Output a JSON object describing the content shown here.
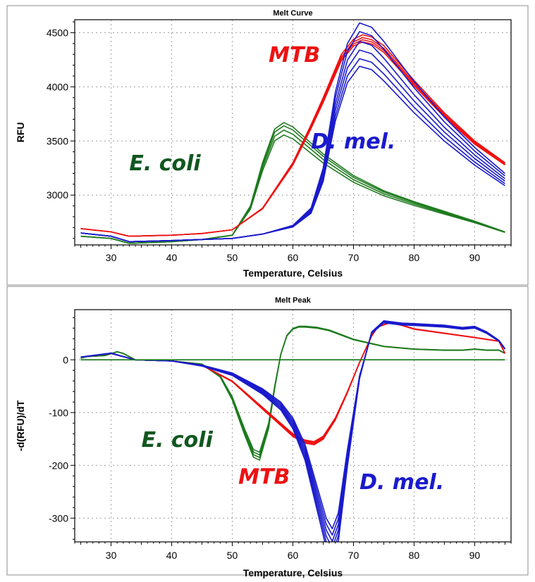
{
  "colors": {
    "ecoli": "#1e7b1e",
    "mtb": "#ee1111",
    "dmel": "#1a1acc",
    "anno_ecoli": "#11571f",
    "anno_mtb": "#ee1111",
    "anno_dmel": "#1a1acc"
  },
  "chart_data": [
    {
      "type": "line",
      "title": "Melt Curve",
      "xlabel": "Temperature, Celsius",
      "ylabel": "RFU",
      "xlim": [
        24,
        96
      ],
      "ylim": [
        2540,
        4620
      ],
      "xticks": [
        30,
        40,
        50,
        60,
        70,
        80,
        90
      ],
      "yticks": [
        3000,
        3500,
        4000,
        4500
      ],
      "grid": true,
      "annotations": [
        {
          "text": "MTB",
          "series": "mtb",
          "x": 56,
          "y": 4230
        },
        {
          "text": "E. coli",
          "series": "ecoli",
          "x": 33,
          "y": 3230
        },
        {
          "text": "D. mel.",
          "series": "dmel",
          "x": 63,
          "y": 3430
        }
      ],
      "series": [
        {
          "group": "ecoli",
          "replicates": 4,
          "spread": [
            0,
            30,
            70,
            115
          ],
          "x": [
            25,
            30,
            33,
            40,
            45,
            50,
            53,
            55,
            57,
            58.5,
            60,
            62,
            65,
            70,
            75,
            80,
            85,
            90,
            95
          ],
          "y": [
            2620,
            2600,
            2555,
            2570,
            2590,
            2630,
            2900,
            3300,
            3610,
            3670,
            3630,
            3530,
            3380,
            3180,
            3040,
            2940,
            2850,
            2760,
            2660
          ]
        },
        {
          "group": "mtb",
          "replicates": 4,
          "spread": [
            0,
            25,
            45,
            65
          ],
          "x": [
            25,
            30,
            33,
            40,
            45,
            50,
            55,
            60,
            63,
            65,
            68,
            70,
            71.5,
            73,
            75,
            80,
            85,
            90,
            95
          ],
          "y": [
            2690,
            2660,
            2620,
            2630,
            2645,
            2680,
            2880,
            3300,
            3650,
            3900,
            4300,
            4440,
            4480,
            4460,
            4380,
            4060,
            3760,
            3500,
            3300
          ]
        },
        {
          "group": "dmel",
          "replicates": 6,
          "spread": [
            0,
            80,
            170,
            250,
            330,
            400
          ],
          "x": [
            25,
            30,
            33,
            40,
            45,
            50,
            55,
            60,
            63,
            65,
            67,
            69,
            71,
            73,
            75,
            80,
            85,
            90,
            95
          ],
          "y": [
            2650,
            2620,
            2570,
            2580,
            2590,
            2600,
            2640,
            2720,
            2880,
            3250,
            3950,
            4400,
            4590,
            4550,
            4420,
            4050,
            3720,
            3440,
            3200
          ]
        }
      ]
    },
    {
      "type": "line",
      "title": "Melt Peak",
      "xlabel": "Temperature, Celsius",
      "ylabel": "-d(RFU)/dT",
      "xlim": [
        24,
        96
      ],
      "ylim": [
        -345,
        95
      ],
      "xticks": [
        30,
        40,
        50,
        60,
        70,
        80,
        90
      ],
      "yticks": [
        -300,
        -200,
        -100,
        0
      ],
      "grid": true,
      "baseline": 0,
      "annotations": [
        {
          "text": "E. coli",
          "series": "ecoli",
          "x": 35,
          "y": -165
        },
        {
          "text": "MTB",
          "series": "mtb",
          "x": 51,
          "y": -235
        },
        {
          "text": "D. mel.",
          "series": "dmel",
          "x": 71,
          "y": -245
        }
      ],
      "series": [
        {
          "group": "ecoli",
          "replicates": 4,
          "spread": [
            0,
            5,
            10,
            15
          ],
          "x": [
            25,
            26,
            29,
            31,
            32,
            34,
            40,
            45,
            48,
            50,
            52,
            53.5,
            54.5,
            56,
            57,
            58,
            59,
            60,
            61,
            62,
            64,
            66,
            70,
            75,
            80,
            85,
            88,
            90,
            92,
            94,
            95
          ],
          "y": [
            3,
            6,
            8,
            15,
            12,
            0,
            -2,
            -8,
            -30,
            -70,
            -130,
            -170,
            -175,
            -120,
            -50,
            10,
            45,
            58,
            62,
            62,
            60,
            55,
            38,
            25,
            20,
            18,
            18,
            20,
            18,
            18,
            12
          ]
        },
        {
          "group": "mtb",
          "replicates": 4,
          "spread": [
            0,
            2,
            4,
            6
          ],
          "x": [
            25,
            30,
            34,
            40,
            45,
            50,
            55,
            58,
            60,
            62,
            63.5,
            65,
            67,
            69,
            71,
            73,
            74,
            76,
            78,
            80,
            85,
            90,
            94,
            95
          ],
          "y": [
            5,
            12,
            0,
            -2,
            -10,
            -40,
            -90,
            -120,
            -140,
            -152,
            -155,
            -145,
            -110,
            -60,
            -5,
            45,
            62,
            70,
            65,
            58,
            50,
            42,
            35,
            12
          ]
        },
        {
          "group": "dmel",
          "replicates": 6,
          "spread": [
            0,
            12,
            24,
            36,
            48,
            60
          ],
          "x": [
            25,
            30,
            34,
            40,
            45,
            50,
            55,
            58,
            60,
            62,
            64,
            65.5,
            66.5,
            67.5,
            69,
            71,
            73,
            75,
            78,
            80,
            85,
            88,
            90,
            92,
            94,
            95
          ],
          "y": [
            5,
            12,
            0,
            -2,
            -10,
            -25,
            -55,
            -80,
            -110,
            -160,
            -240,
            -300,
            -320,
            -290,
            -170,
            -30,
            50,
            70,
            66,
            65,
            62,
            58,
            60,
            50,
            35,
            20
          ]
        }
      ]
    }
  ]
}
